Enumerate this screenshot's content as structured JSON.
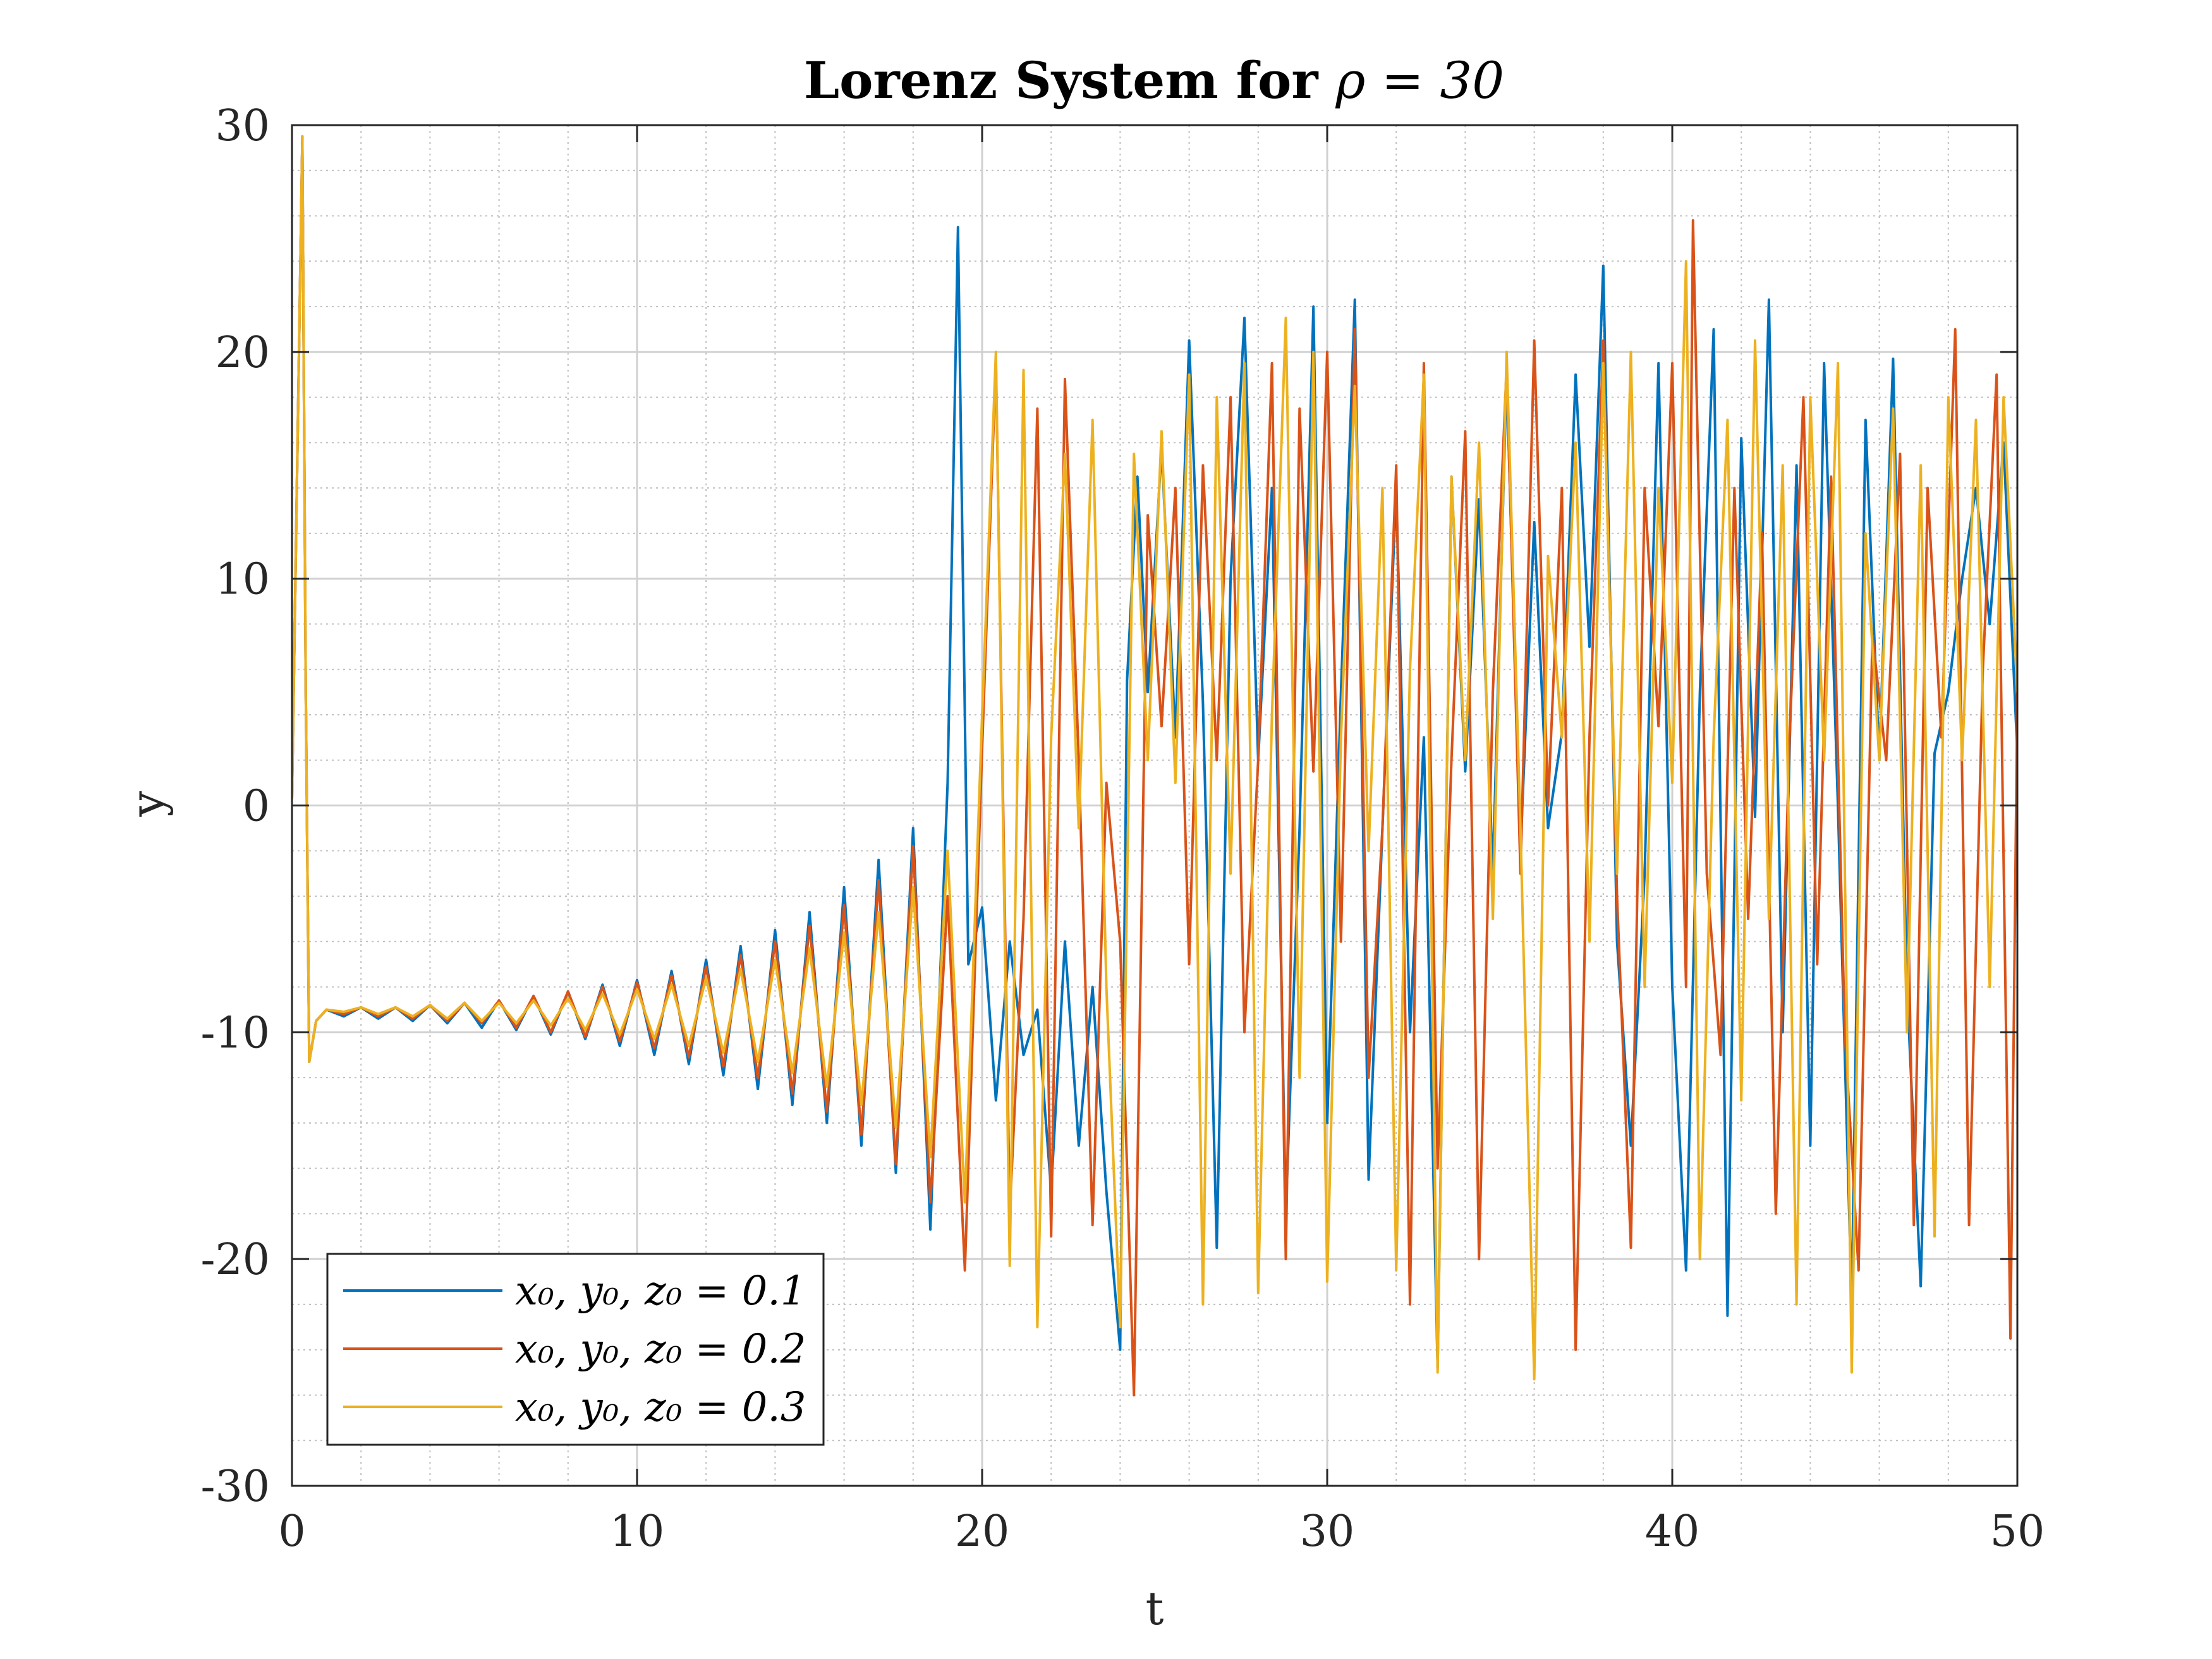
{
  "chart_data": {
    "type": "line",
    "title": "Lorenz System for ρ = 30",
    "title_prefix": "Lorenz System for ",
    "title_math": "ρ = 30",
    "xlabel": "t",
    "ylabel": "y",
    "xlim": [
      0,
      50
    ],
    "ylim": [
      -30,
      30
    ],
    "xticks": [
      0,
      10,
      20,
      30,
      40,
      50
    ],
    "yticks": [
      -30,
      -20,
      -10,
      0,
      10,
      20,
      30
    ],
    "xtick_labels": [
      "0",
      "10",
      "20",
      "30",
      "40",
      "50"
    ],
    "ytick_labels": [
      "-30",
      "-20",
      "-10",
      "0",
      "10",
      "20",
      "30"
    ],
    "grid": true,
    "minor_grid": true,
    "legend_position": "bottom-left",
    "series": [
      {
        "name": "x0, y0, z0 = 0.1",
        "label": "x₀, y₀, z₀ = 0.1",
        "color": "#0072BD",
        "x": [
          0,
          0.3,
          0.4,
          0.5,
          0.7,
          1.0,
          1.5,
          2.0,
          2.5,
          3.0,
          3.5,
          4.0,
          4.5,
          5.0,
          5.5,
          6.0,
          6.5,
          7.0,
          7.5,
          8.0,
          8.5,
          9.0,
          9.5,
          10.0,
          10.5,
          11.0,
          11.5,
          12.0,
          12.5,
          13.0,
          13.5,
          14.0,
          14.5,
          15.0,
          15.5,
          16.0,
          16.5,
          17.0,
          17.5,
          18.0,
          18.5,
          19.0,
          19.3,
          19.6,
          20.0,
          20.4,
          20.8,
          21.2,
          21.6,
          22.0,
          22.4,
          22.8,
          23.2,
          23.6,
          24.0,
          24.2,
          24.5,
          24.8,
          25.2,
          25.6,
          26.0,
          26.4,
          26.8,
          27.2,
          27.6,
          28.0,
          28.4,
          28.8,
          29.2,
          29.6,
          30.0,
          30.4,
          30.8,
          31.2,
          31.6,
          32.0,
          32.4,
          32.8,
          33.2,
          33.6,
          34.0,
          34.4,
          34.8,
          35.2,
          35.6,
          36.0,
          36.4,
          36.8,
          37.2,
          37.6,
          38.0,
          38.4,
          38.8,
          39.2,
          39.6,
          40.0,
          40.4,
          40.8,
          41.2,
          41.6,
          42.0,
          42.4,
          42.8,
          43.2,
          43.6,
          44.0,
          44.4,
          44.8,
          45.2,
          45.6,
          46.0,
          46.4,
          46.8,
          47.2,
          47.6,
          48.0,
          48.4,
          48.8,
          49.2,
          49.6,
          50.0
        ],
        "y": [
          0.3,
          29.5,
          5,
          -11.3,
          -9.5,
          -9.0,
          -9.3,
          -8.9,
          -9.4,
          -8.9,
          -9.5,
          -8.8,
          -9.6,
          -8.7,
          -9.8,
          -8.6,
          -9.9,
          -8.4,
          -10.1,
          -8.2,
          -10.3,
          -7.9,
          -10.6,
          -7.7,
          -11.0,
          -7.3,
          -11.4,
          -6.8,
          -11.9,
          -6.2,
          -12.5,
          -5.5,
          -13.2,
          -4.7,
          -14.0,
          -3.6,
          -15.0,
          -2.4,
          -16.2,
          -1.0,
          -18.7,
          1.0,
          25.5,
          -7.0,
          -4.5,
          -13.0,
          -6.0,
          -11.0,
          -9.0,
          -17.0,
          -6.0,
          -15.0,
          -8.0,
          -17.0,
          -24.0,
          5.5,
          14.5,
          5.0,
          15.8,
          3.0,
          20.5,
          4.5,
          -19.5,
          10.0,
          21.5,
          2.0,
          14.0,
          -18.0,
          -1.0,
          22.0,
          -14.0,
          5.0,
          22.3,
          -16.5,
          -1.0,
          14.0,
          -10.0,
          3.0,
          -24.8,
          14.5,
          1.5,
          13.5,
          -3.0,
          19.0,
          -2.0,
          12.5,
          -1.0,
          3.2,
          19.0,
          7.0,
          23.8,
          -6.0,
          -15.0,
          -3.0,
          19.5,
          -8.0,
          -20.5,
          5.0,
          21.0,
          -22.5,
          16.2,
          -0.5,
          22.3,
          -10.0,
          15.0,
          -15.0,
          19.5,
          0.0,
          -22.0,
          17.0,
          2.0,
          19.7,
          -8.0,
          -21.2,
          2.3,
          5.0,
          10.0,
          14.0,
          8.0,
          16.0,
          2.3
        ]
      },
      {
        "name": "x0, y0, z0 = 0.2",
        "label": "x₀, y₀, z₀ = 0.2",
        "color": "#D95319",
        "x": [
          0,
          0.3,
          0.4,
          0.5,
          0.7,
          1.0,
          1.5,
          2.0,
          2.5,
          3.0,
          3.5,
          4.0,
          4.5,
          5.0,
          5.5,
          6.0,
          6.5,
          7.0,
          7.5,
          8.0,
          8.5,
          9.0,
          9.5,
          10.0,
          10.5,
          11.0,
          11.5,
          12.0,
          12.5,
          13.0,
          13.5,
          14.0,
          14.5,
          15.0,
          15.5,
          16.0,
          16.5,
          17.0,
          17.5,
          18.0,
          18.5,
          19.0,
          19.5,
          20.0,
          20.4,
          20.8,
          21.2,
          21.6,
          22.0,
          22.4,
          22.8,
          23.2,
          23.6,
          24.0,
          24.4,
          24.8,
          25.2,
          25.6,
          26.0,
          26.4,
          26.8,
          27.2,
          27.6,
          28.0,
          28.4,
          28.8,
          29.2,
          29.6,
          30.0,
          30.4,
          30.8,
          31.2,
          31.6,
          32.0,
          32.4,
          32.8,
          33.2,
          33.6,
          34.0,
          34.4,
          34.8,
          35.2,
          35.6,
          36.0,
          36.4,
          36.8,
          37.2,
          37.6,
          38.0,
          38.4,
          38.8,
          39.2,
          39.6,
          40.0,
          40.4,
          40.6,
          41.0,
          41.4,
          41.8,
          42.2,
          42.6,
          43.0,
          43.4,
          43.8,
          44.2,
          44.6,
          45.0,
          45.4,
          45.8,
          46.2,
          46.6,
          47.0,
          47.4,
          47.8,
          48.2,
          48.6,
          49.0,
          49.4,
          49.8,
          50.0
        ],
        "y": [
          0.3,
          29.5,
          5,
          -11.3,
          -9.5,
          -9.0,
          -9.2,
          -8.9,
          -9.3,
          -8.9,
          -9.4,
          -8.8,
          -9.5,
          -8.7,
          -9.6,
          -8.6,
          -9.8,
          -8.4,
          -10.0,
          -8.2,
          -10.2,
          -8.0,
          -10.4,
          -7.8,
          -10.7,
          -7.5,
          -11.1,
          -7.1,
          -11.5,
          -6.6,
          -12.0,
          -6.0,
          -12.7,
          -5.3,
          -13.5,
          -4.4,
          -14.5,
          -3.3,
          -15.8,
          -1.8,
          -17.5,
          -4.0,
          -20.5,
          2.5,
          19.6,
          -18.0,
          -5.0,
          17.5,
          -19.0,
          18.8,
          2.0,
          -18.5,
          1.0,
          -6.0,
          -26.0,
          12.8,
          3.5,
          14.0,
          -7.0,
          15.0,
          2.0,
          18.0,
          -10.0,
          2.0,
          19.5,
          -20.0,
          17.5,
          1.5,
          20.0,
          -6.0,
          21.0,
          -12.0,
          -1.0,
          15.0,
          -22.0,
          19.5,
          -16.0,
          2.0,
          16.5,
          -20.0,
          5.0,
          19.3,
          -3.0,
          20.5,
          0.0,
          14.0,
          -24.0,
          3.0,
          20.5,
          -4.0,
          -19.5,
          14.0,
          3.5,
          19.5,
          -8.0,
          25.8,
          -3.0,
          -11.0,
          14.0,
          -5.0,
          12.0,
          -18.0,
          3.0,
          18.0,
          -7.0,
          14.5,
          -10.0,
          -20.5,
          7.5,
          2.0,
          15.5,
          -18.5,
          14.0,
          3.0,
          21.0,
          -18.5,
          6.0,
          19.0,
          -23.5,
          5.0
        ]
      },
      {
        "name": "x0, y0, z0 = 0.3",
        "label": "x₀, y₀, z₀ = 0.3",
        "color": "#EDB120",
        "x": [
          0,
          0.3,
          0.4,
          0.5,
          0.7,
          1.0,
          1.5,
          2.0,
          2.5,
          3.0,
          3.5,
          4.0,
          4.5,
          5.0,
          5.5,
          6.0,
          6.5,
          7.0,
          7.5,
          8.0,
          8.5,
          9.0,
          9.5,
          10.0,
          10.5,
          11.0,
          11.5,
          12.0,
          12.5,
          13.0,
          13.5,
          14.0,
          14.5,
          15.0,
          15.5,
          16.0,
          16.5,
          17.0,
          17.5,
          18.0,
          18.5,
          19.0,
          19.5,
          20.0,
          20.4,
          20.8,
          21.2,
          21.6,
          22.0,
          22.4,
          22.8,
          23.2,
          23.6,
          24.0,
          24.4,
          24.8,
          25.2,
          25.6,
          26.0,
          26.4,
          26.8,
          27.2,
          27.6,
          28.0,
          28.4,
          28.8,
          29.2,
          29.6,
          30.0,
          30.4,
          30.8,
          31.2,
          31.6,
          32.0,
          32.4,
          32.8,
          33.2,
          33.6,
          34.0,
          34.4,
          34.8,
          35.2,
          35.6,
          36.0,
          36.4,
          36.8,
          37.2,
          37.6,
          38.0,
          38.4,
          38.8,
          39.2,
          39.6,
          40.0,
          40.4,
          40.8,
          41.2,
          41.6,
          42.0,
          42.4,
          42.8,
          43.2,
          43.6,
          44.0,
          44.4,
          44.8,
          45.2,
          45.6,
          46.0,
          46.4,
          46.8,
          47.2,
          47.6,
          48.0,
          48.4,
          48.8,
          49.2,
          49.6,
          50.0
        ],
        "y": [
          0.3,
          29.5,
          5,
          -11.3,
          -9.5,
          -9.0,
          -9.1,
          -8.9,
          -9.2,
          -8.9,
          -9.3,
          -8.8,
          -9.4,
          -8.7,
          -9.5,
          -8.7,
          -9.6,
          -8.6,
          -9.7,
          -8.5,
          -9.9,
          -8.3,
          -10.1,
          -8.1,
          -10.3,
          -7.9,
          -10.6,
          -7.6,
          -10.9,
          -7.2,
          -11.3,
          -6.8,
          -11.8,
          -6.3,
          -12.4,
          -5.6,
          -13.2,
          -4.7,
          -14.2,
          -3.6,
          -15.5,
          -2.0,
          -17.5,
          4.0,
          20.0,
          -20.3,
          19.2,
          -23.0,
          3.0,
          15.5,
          -1.0,
          17.0,
          -8.0,
          -23.0,
          15.5,
          2.0,
          16.5,
          1.0,
          19.0,
          -22.0,
          18.0,
          -3.0,
          19.5,
          -21.5,
          4.0,
          21.5,
          -12.0,
          20.0,
          -21.0,
          3.0,
          18.5,
          -2.0,
          14.0,
          -20.5,
          6.0,
          19.0,
          -25.0,
          14.5,
          2.0,
          16.0,
          -5.0,
          20.0,
          -1.0,
          -25.3,
          11.0,
          3.0,
          16.0,
          -6.0,
          19.5,
          -3.0,
          20.0,
          -8.0,
          14.0,
          1.0,
          24.0,
          -20.0,
          3.0,
          17.0,
          -13.0,
          20.5,
          -5.0,
          15.0,
          -22.0,
          18.0,
          2.0,
          19.5,
          -25.0,
          12.0,
          2.0,
          17.5,
          -10.0,
          15.0,
          -19.0,
          18.0,
          2.0,
          17.0,
          -8.0,
          18.0,
          5.0
        ]
      }
    ]
  }
}
